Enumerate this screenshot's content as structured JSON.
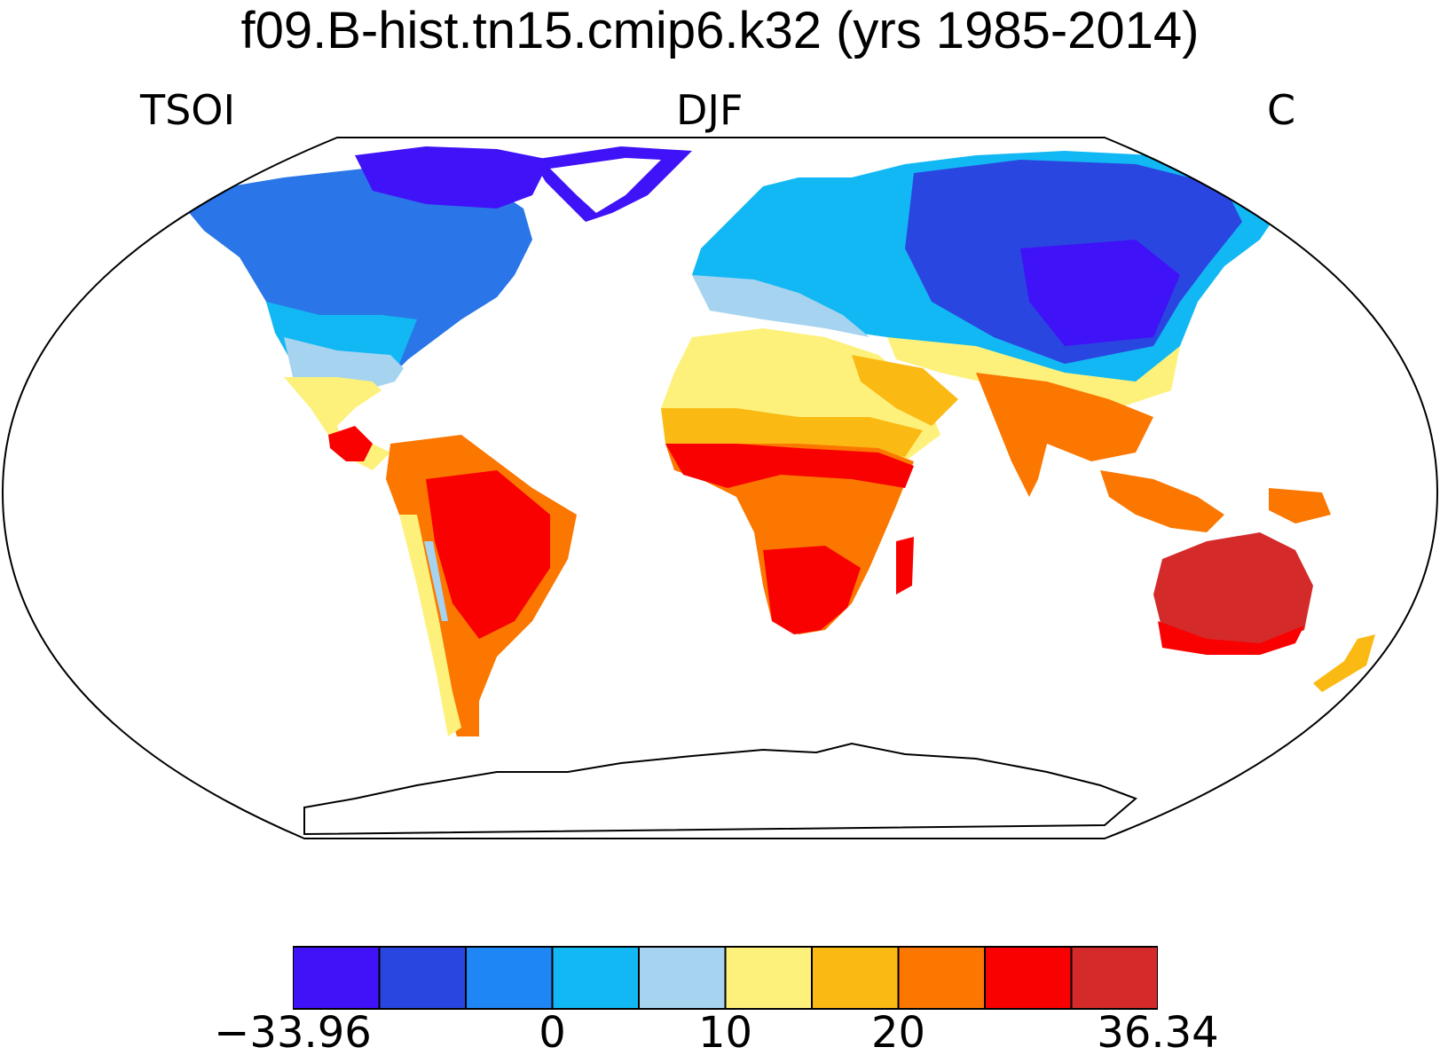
{
  "title": "f09.B-hist.tn15.cmip6.k32 (yrs 1985-2014)",
  "labels": {
    "left": "TSOI",
    "center": "DJF",
    "right": "C"
  },
  "legend": {
    "colors": [
      "#4012f7",
      "#2a46e0",
      "#1f86f5",
      "#12b8f3",
      "#a6d3f0",
      "#fdf17c",
      "#fbb913",
      "#fb7700",
      "#f90100",
      "#d42a2a"
    ],
    "tick_labels": [
      {
        "text": "−33.96",
        "boundary": 0
      },
      {
        "text": "0",
        "boundary": 3
      },
      {
        "text": "10",
        "boundary": 5
      },
      {
        "text": "20",
        "boundary": 7
      },
      {
        "text": "36.34",
        "boundary": 10
      }
    ]
  },
  "regions": {
    "greenland_color": "#ffffff",
    "ocean_color": "#ffffff",
    "land_outline_color": "#000000"
  }
}
